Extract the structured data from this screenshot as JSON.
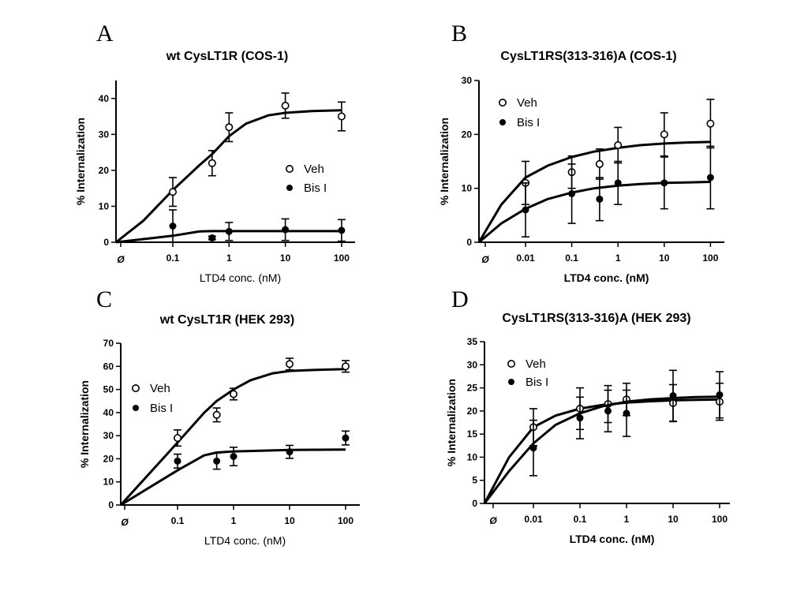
{
  "chart_data": [
    {
      "panel": "A",
      "type": "scatter",
      "title": "wt CysLT1R (COS-1)",
      "xlabel": "LTD4 conc. (nM)",
      "ylabel": "% Internalization",
      "xscale": "log",
      "zero_label": "Ø",
      "x_ticks": [
        0.1,
        1,
        10,
        100
      ],
      "x_tick_labels": [
        "0.1",
        "1",
        "10",
        "100"
      ],
      "y_ticks": [
        0,
        10,
        20,
        30,
        40
      ],
      "ylim": [
        0,
        45
      ],
      "legend": "center-right",
      "series": [
        {
          "name": "Veh",
          "marker": "open-circle",
          "x": [
            0.1,
            0.5,
            1,
            10,
            100
          ],
          "y": [
            14,
            22,
            32,
            38,
            35
          ],
          "err": [
            4,
            3.5,
            4,
            3.5,
            4
          ],
          "fit_x": [
            0,
            0.03,
            0.1,
            0.3,
            0.5,
            1,
            2,
            5,
            10,
            30,
            100
          ],
          "fit_y": [
            0,
            6,
            14.5,
            21.5,
            24.5,
            29.5,
            33,
            35.3,
            36,
            36.5,
            36.7
          ]
        },
        {
          "name": "Bis I",
          "marker": "filled-circle",
          "x": [
            0.1,
            0.5,
            1,
            10,
            100
          ],
          "y": [
            4.5,
            1.2,
            3,
            3.5,
            3.3
          ],
          "err": [
            4.5,
            0.5,
            2.5,
            3,
            3
          ],
          "fit_x": [
            0,
            0.1,
            0.3,
            0.5,
            1,
            10,
            100
          ],
          "fit_y": [
            0,
            1.8,
            3.0,
            3.1,
            3.1,
            3.1,
            3.1
          ]
        }
      ]
    },
    {
      "panel": "B",
      "type": "scatter",
      "title": "CysLT1RS(313-316)A (COS-1)",
      "xlabel": "LTD4 conc. (nM)",
      "ylabel": "% Internalization",
      "xscale": "log",
      "zero_label": "Ø",
      "x_ticks": [
        0.01,
        0.1,
        1,
        10,
        100
      ],
      "x_tick_labels": [
        "0.01",
        "0.1",
        "1",
        "10",
        "100"
      ],
      "y_ticks": [
        0,
        10,
        20,
        30
      ],
      "ylim": [
        0,
        30
      ],
      "legend": "top-left",
      "series": [
        {
          "name": "Veh",
          "marker": "open-circle",
          "x": [
            0.01,
            0.1,
            0.4,
            1,
            10,
            100
          ],
          "y": [
            11,
            13,
            14.5,
            18,
            20,
            22
          ],
          "err": [
            4,
            3,
            2.8,
            3.3,
            4,
            4.5
          ],
          "fit_x": [
            0,
            0.003,
            0.01,
            0.03,
            0.1,
            0.3,
            1,
            3,
            10,
            30,
            100
          ],
          "fit_y": [
            0,
            7,
            12,
            14.2,
            15.8,
            16.8,
            17.5,
            18,
            18.3,
            18.5,
            18.6
          ]
        },
        {
          "name": "Bis I",
          "marker": "filled-circle",
          "x": [
            0.01,
            0.1,
            0.4,
            1,
            10,
            100
          ],
          "y": [
            6,
            9,
            8,
            11,
            11,
            12
          ],
          "err": [
            5,
            5.5,
            4,
            4,
            4.8,
            5.8
          ],
          "fit_x": [
            0,
            0.003,
            0.01,
            0.03,
            0.1,
            0.3,
            1,
            3,
            10,
            30,
            100
          ],
          "fit_y": [
            0,
            3.5,
            6.2,
            8.0,
            9.2,
            10.0,
            10.5,
            10.8,
            11.0,
            11.1,
            11.2
          ]
        }
      ]
    },
    {
      "panel": "C",
      "type": "scatter",
      "title": "wt CysLT1R (HEK 293)",
      "xlabel": "LTD4 conc. (nM)",
      "ylabel": "% Internalization",
      "xscale": "log",
      "zero_label": "Ø",
      "x_ticks": [
        0.1,
        1,
        10,
        100
      ],
      "x_tick_labels": [
        "0.1",
        "1",
        "10",
        "100"
      ],
      "y_ticks": [
        0,
        10,
        20,
        30,
        40,
        50,
        60,
        70
      ],
      "ylim": [
        0,
        70
      ],
      "legend": "center-left",
      "series": [
        {
          "name": "Veh",
          "marker": "open-circle",
          "x": [
            0.1,
            0.5,
            1,
            10,
            100
          ],
          "y": [
            29,
            39,
            48,
            61,
            60
          ],
          "err": [
            3.5,
            3,
            2.5,
            2.5,
            2.5
          ],
          "fit_x": [
            0,
            0.1,
            0.3,
            0.5,
            1,
            2,
            5,
            10,
            30,
            100
          ],
          "fit_y": [
            0,
            27,
            40,
            45,
            50,
            54,
            57,
            58,
            58.5,
            58.8
          ]
        },
        {
          "name": "Bis I",
          "marker": "filled-circle",
          "x": [
            0.1,
            0.5,
            1,
            10,
            100
          ],
          "y": [
            19,
            19,
            21,
            23,
            29
          ],
          "err": [
            3,
            3.5,
            4,
            2.8,
            3
          ],
          "fit_x": [
            0,
            0.1,
            0.3,
            0.5,
            1,
            10,
            100
          ],
          "fit_y": [
            0,
            15,
            21.5,
            22.7,
            23.2,
            23.8,
            24
          ]
        }
      ]
    },
    {
      "panel": "D",
      "type": "scatter",
      "title": "CysLT1RS(313-316)A (HEK 293)",
      "xlabel": "LTD4 conc. (nM)",
      "ylabel": "% Internalization",
      "xscale": "log",
      "zero_label": "Ø",
      "x_ticks": [
        0.01,
        0.1,
        1,
        10,
        100
      ],
      "x_tick_labels": [
        "0.01",
        "0.1",
        "1",
        "10",
        "100"
      ],
      "y_ticks": [
        0,
        5,
        10,
        15,
        20,
        25,
        30,
        35
      ],
      "ylim": [
        0,
        35
      ],
      "legend": "top-center",
      "series": [
        {
          "name": "Veh",
          "marker": "open-circle",
          "x": [
            0.01,
            0.1,
            0.4,
            1,
            10,
            100
          ],
          "y": [
            16.5,
            20.5,
            21.5,
            22.5,
            21.7,
            22
          ],
          "err": [
            4,
            4.5,
            4,
            3.5,
            4,
            4
          ],
          "fit_x": [
            0,
            0.003,
            0.01,
            0.03,
            0.1,
            0.3,
            1,
            3,
            10,
            30,
            100
          ],
          "fit_y": [
            0,
            10,
            16.5,
            19,
            20.5,
            21.3,
            21.8,
            22.1,
            22.3,
            22.4,
            22.5
          ]
        },
        {
          "name": "Bis I",
          "marker": "filled-circle",
          "x": [
            0.01,
            0.1,
            0.4,
            1,
            10,
            100
          ],
          "y": [
            12,
            18.5,
            20,
            19.5,
            23.3,
            23.5
          ],
          "err": [
            6,
            4.5,
            4.5,
            5,
            5.5,
            5
          ],
          "fit_x": [
            0,
            0.003,
            0.01,
            0.03,
            0.1,
            0.3,
            1,
            3,
            10,
            30,
            100
          ],
          "fit_y": [
            0,
            7,
            13,
            17,
            19.5,
            21,
            22,
            22.5,
            22.8,
            23,
            23.1
          ]
        }
      ]
    }
  ]
}
